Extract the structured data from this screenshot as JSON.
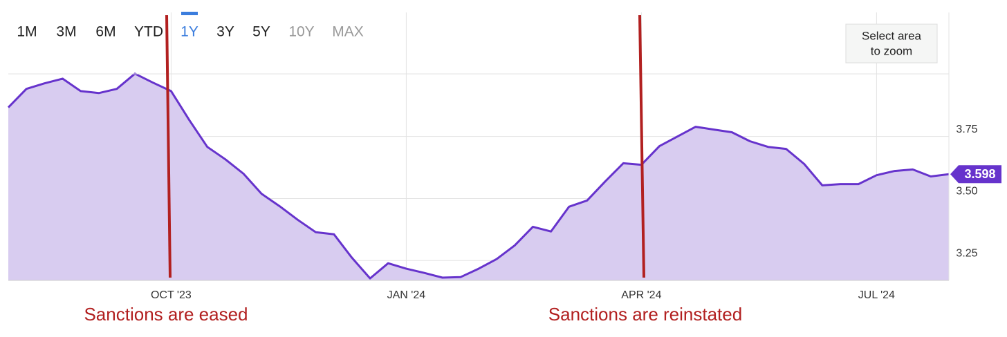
{
  "chart_data": {
    "type": "area",
    "range_buttons": [
      "1M",
      "3M",
      "6M",
      "YTD",
      "1Y",
      "3Y",
      "5Y",
      "10Y",
      "MAX"
    ],
    "selected_range": "1Y",
    "disabled_ranges": [
      "10Y",
      "MAX"
    ],
    "zoom_button": [
      "Select area",
      "to zoom"
    ],
    "annotations": [
      "Sanctions are eased",
      "Sanctions are reinstated"
    ],
    "categories": [
      null,
      null,
      null,
      null,
      null,
      null,
      null,
      null,
      null,
      "OCT '23",
      null,
      null,
      null,
      null,
      null,
      null,
      null,
      null,
      null,
      null,
      null,
      null,
      "JAN '24",
      null,
      null,
      null,
      null,
      null,
      null,
      null,
      null,
      null,
      null,
      null,
      null,
      "APR '24",
      null,
      null,
      null,
      null,
      null,
      null,
      null,
      null,
      null,
      null,
      null,
      null,
      "JUL '24",
      null,
      null,
      null,
      null
    ],
    "values": [
      3.867,
      3.942,
      3.964,
      3.983,
      3.933,
      3.925,
      3.942,
      4.003,
      3.967,
      3.933,
      3.817,
      3.708,
      3.658,
      3.6,
      3.519,
      3.469,
      3.414,
      3.364,
      3.356,
      3.261,
      3.178,
      3.239,
      3.217,
      3.2,
      3.181,
      3.183,
      3.217,
      3.256,
      3.311,
      3.386,
      3.367,
      3.467,
      3.492,
      3.569,
      3.642,
      3.636,
      3.711,
      3.75,
      3.789,
      3.778,
      3.767,
      3.731,
      3.708,
      3.7,
      3.639,
      3.553,
      3.558,
      3.558,
      3.594,
      3.611,
      3.617,
      3.589,
      3.598
    ],
    "color": "#6633cc",
    "fill": "#d8ccf0",
    "ylim": [
      3.17,
      4.25
    ],
    "yticks": [
      3.25,
      {
        "value": 3.5,
        "label": "3.50"
      },
      3.75
    ],
    "grid": true
  }
}
